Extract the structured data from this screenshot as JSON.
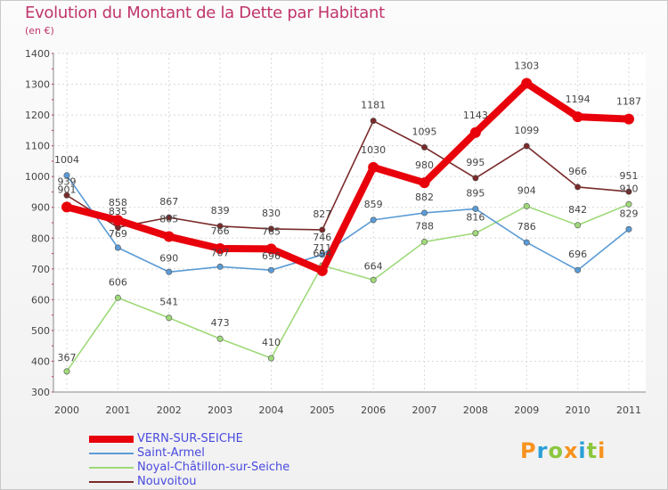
{
  "title": "Evolution du Montant de la Dette par Habitant",
  "subtitle": "(en €)",
  "chart_data": {
    "type": "line",
    "x": [
      "2000",
      "2001",
      "2002",
      "2003",
      "2004",
      "2005",
      "2006",
      "2007",
      "2008",
      "2009",
      "2010",
      "2011"
    ],
    "ylim": [
      300,
      1400
    ],
    "yticks": [
      300,
      400,
      500,
      600,
      700,
      800,
      900,
      1000,
      1100,
      1200,
      1300,
      1400
    ],
    "grid": true,
    "series": [
      {
        "name": "VERN-SUR-SEICHE",
        "color": "#e8000b",
        "values": [
          901,
          858,
          805,
          766,
          765,
          694,
          1030,
          980,
          1143,
          1303,
          1194,
          1187
        ],
        "labels": [
          "901",
          "858",
          "805",
          "766",
          "765",
          "694",
          "1030",
          "980",
          "1143",
          "1303",
          "1194",
          "1187"
        ],
        "bold": true
      },
      {
        "name": "Saint-Armel",
        "color": "#5b9bd5",
        "values": [
          1004,
          769,
          690,
          707,
          696,
          746,
          859,
          882,
          895,
          786,
          696,
          829
        ],
        "labels": [
          "1004",
          "769",
          "690",
          "707",
          "696",
          "746",
          "859",
          "882",
          "895",
          "786",
          "696",
          "829"
        ]
      },
      {
        "name": "Noyal-Châtillon-sur-Seiche",
        "color": "#9fd97a",
        "values": [
          367,
          606,
          541,
          473,
          410,
          711,
          664,
          788,
          816,
          904,
          842,
          910
        ],
        "labels": [
          "367",
          "606",
          "541",
          "473",
          "410",
          "711",
          "664",
          "788",
          "816",
          "904",
          "842",
          "910"
        ]
      },
      {
        "name": "Nouvoitou",
        "color": "#7a2a2a",
        "values": [
          939,
          835,
          867,
          839,
          830,
          827,
          1181,
          1095,
          995,
          1099,
          966,
          951
        ],
        "labels": [
          "939",
          "835",
          "867",
          "839",
          "830",
          "827",
          "1181",
          "1095",
          "995",
          "1099",
          "966",
          "951"
        ]
      }
    ],
    "legend_position": "bottom-left"
  },
  "logo": {
    "letters": [
      "P",
      "r",
      "o",
      "x",
      "i",
      "t",
      "i"
    ],
    "colors": [
      "#f7931e",
      "#2aa0d8",
      "#8cc63f",
      "#f7931e",
      "#2aa0d8",
      "#8cc63f",
      "#f7931e"
    ]
  }
}
